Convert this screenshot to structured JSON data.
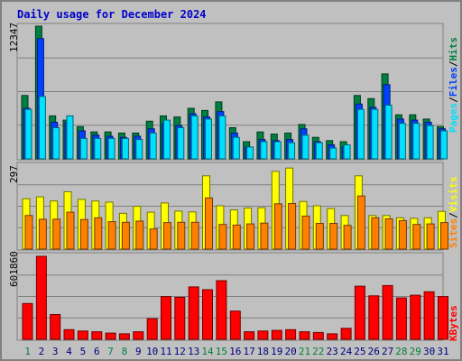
{
  "page_title": "Daily usage for December 2024",
  "colors": {
    "background": "#C0C0C0",
    "title": "#0000CC",
    "hits": "#008040",
    "files": "#0040FF",
    "pages": "#00E0FF",
    "visits": "#FFFF00",
    "sites": "#FF8000",
    "kbytes": "#FF0000",
    "weekday_label": "#000080",
    "weekend_label": "#008040"
  },
  "side_labels": {
    "pages": "Pages",
    "files": "Files",
    "hits": "Hits",
    "sites": "Sites",
    "visits": "Visits",
    "kbytes": "KBytes",
    "sep": "/"
  },
  "chart_data": [
    {
      "type": "bar",
      "title": "Daily usage for December 2024",
      "ymax_label": "12347",
      "ylim": [
        0,
        12347
      ],
      "categories": [
        "1",
        "2",
        "3",
        "4",
        "5",
        "6",
        "7",
        "8",
        "9",
        "10",
        "11",
        "12",
        "13",
        "14",
        "15",
        "16",
        "17",
        "18",
        "19",
        "20",
        "21",
        "22",
        "23",
        "24",
        "25",
        "26",
        "27",
        "28",
        "29",
        "30",
        "31"
      ],
      "weekend_days": [
        "1",
        "7",
        "8",
        "14",
        "15",
        "21",
        "22",
        "28",
        "29"
      ],
      "series": [
        {
          "name": "Hits",
          "color_key": "hits",
          "values": [
            5900,
            12347,
            4000,
            3600,
            3000,
            2500,
            2500,
            2400,
            2400,
            3500,
            4000,
            3900,
            4700,
            4500,
            5300,
            2900,
            1600,
            2500,
            2300,
            2400,
            3200,
            2000,
            1700,
            1600,
            5900,
            5600,
            7900,
            4100,
            4100,
            3700,
            3000
          ]
        },
        {
          "name": "Files",
          "color_key": "files",
          "values": [
            4700,
            11200,
            3400,
            3400,
            2600,
            2200,
            2100,
            2000,
            2100,
            2800,
            3300,
            3100,
            4200,
            3900,
            4400,
            2400,
            1100,
            1800,
            1700,
            1800,
            2800,
            1600,
            1300,
            1100,
            5100,
            4800,
            6900,
            3700,
            3600,
            3400,
            2800
          ]
        },
        {
          "name": "Pages",
          "color_key": "pages",
          "values": [
            4600,
            5800,
            2900,
            4000,
            1900,
            1900,
            1900,
            1900,
            1800,
            2400,
            3600,
            2900,
            4000,
            3700,
            4000,
            2000,
            1100,
            1600,
            1600,
            1500,
            2200,
            1500,
            1000,
            1300,
            4600,
            4600,
            5000,
            3300,
            3300,
            3100,
            2600
          ]
        }
      ]
    },
    {
      "type": "bar",
      "ymax_label": "297",
      "ylim": [
        0,
        297
      ],
      "categories": [
        "1",
        "2",
        "3",
        "4",
        "5",
        "6",
        "7",
        "8",
        "9",
        "10",
        "11",
        "12",
        "13",
        "14",
        "15",
        "16",
        "17",
        "18",
        "19",
        "20",
        "21",
        "22",
        "23",
        "24",
        "25",
        "26",
        "27",
        "28",
        "29",
        "30",
        "31"
      ],
      "series": [
        {
          "name": "Visits",
          "color_key": "visits",
          "values": [
            180,
            187,
            172,
            205,
            178,
            172,
            168,
            128,
            153,
            132,
            165,
            136,
            133,
            262,
            155,
            140,
            147,
            148,
            278,
            290,
            170,
            155,
            145,
            120,
            262,
            120,
            120,
            112,
            110,
            112,
            135
          ]
        },
        {
          "name": "Sites",
          "color_key": "sites",
          "values": [
            120,
            107,
            107,
            132,
            106,
            112,
            98,
            96,
            100,
            72,
            95,
            96,
            96,
            183,
            88,
            86,
            90,
            93,
            162,
            163,
            118,
            92,
            92,
            85,
            190,
            112,
            108,
            102,
            88,
            90,
            95
          ]
        }
      ]
    },
    {
      "type": "bar",
      "ymax_label": "601860",
      "ylim": [
        0,
        601860
      ],
      "categories": [
        "1",
        "2",
        "3",
        "4",
        "5",
        "6",
        "7",
        "8",
        "9",
        "10",
        "11",
        "12",
        "13",
        "14",
        "15",
        "16",
        "17",
        "18",
        "19",
        "20",
        "21",
        "22",
        "23",
        "24",
        "25",
        "26",
        "27",
        "28",
        "29",
        "30",
        "31"
      ],
      "series": [
        {
          "name": "KBytes",
          "color_key": "kbytes",
          "values": [
            260000,
            601860,
            180000,
            70000,
            60000,
            55000,
            45000,
            40000,
            55000,
            150000,
            310000,
            305000,
            380000,
            360000,
            425000,
            205000,
            55000,
            60000,
            65000,
            70000,
            55000,
            50000,
            40000,
            80000,
            385000,
            315000,
            390000,
            300000,
            320000,
            345000,
            310000
          ]
        }
      ]
    }
  ]
}
